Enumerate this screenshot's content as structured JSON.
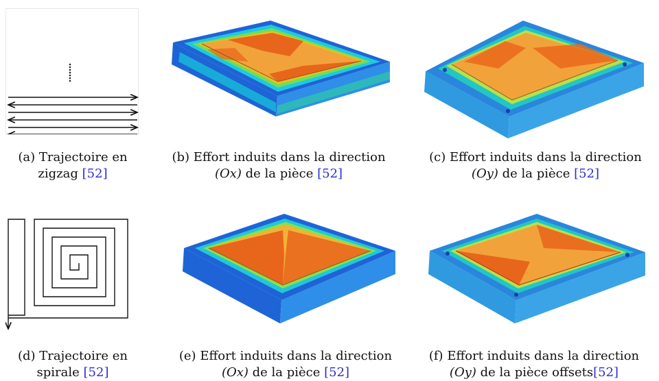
{
  "panels": [
    {
      "id": "a",
      "label": "(a)",
      "line1": "Trajectoire en",
      "line2_text": "zigzag ",
      "ref": "[52]"
    },
    {
      "id": "b",
      "label": "(b)",
      "line1": "Effort induits dans la direction",
      "line2_math": "(Ox)",
      "line2_text": " de la pièce ",
      "ref": "[52]"
    },
    {
      "id": "c",
      "label": "(c)",
      "line1": "Effort induits dans la direction",
      "line2_math": "(Oy)",
      "line2_text": " de la pièce ",
      "ref": "[52]"
    },
    {
      "id": "d",
      "label": "(d)",
      "line1": "Trajectoire en",
      "line2_text": "spirale ",
      "ref": "[52]"
    },
    {
      "id": "e",
      "label": "(e)",
      "line1": "Effort induits dans la direction",
      "line2_math": "(Ox)",
      "line2_text": " de la pièce ",
      "ref": "[52]"
    },
    {
      "id": "f",
      "label": "(f)",
      "line1": "Effort induits dans la direction",
      "line2_math": "(Oy)",
      "line2_text": " de la pièce offsets",
      "ref": "[52]"
    }
  ]
}
